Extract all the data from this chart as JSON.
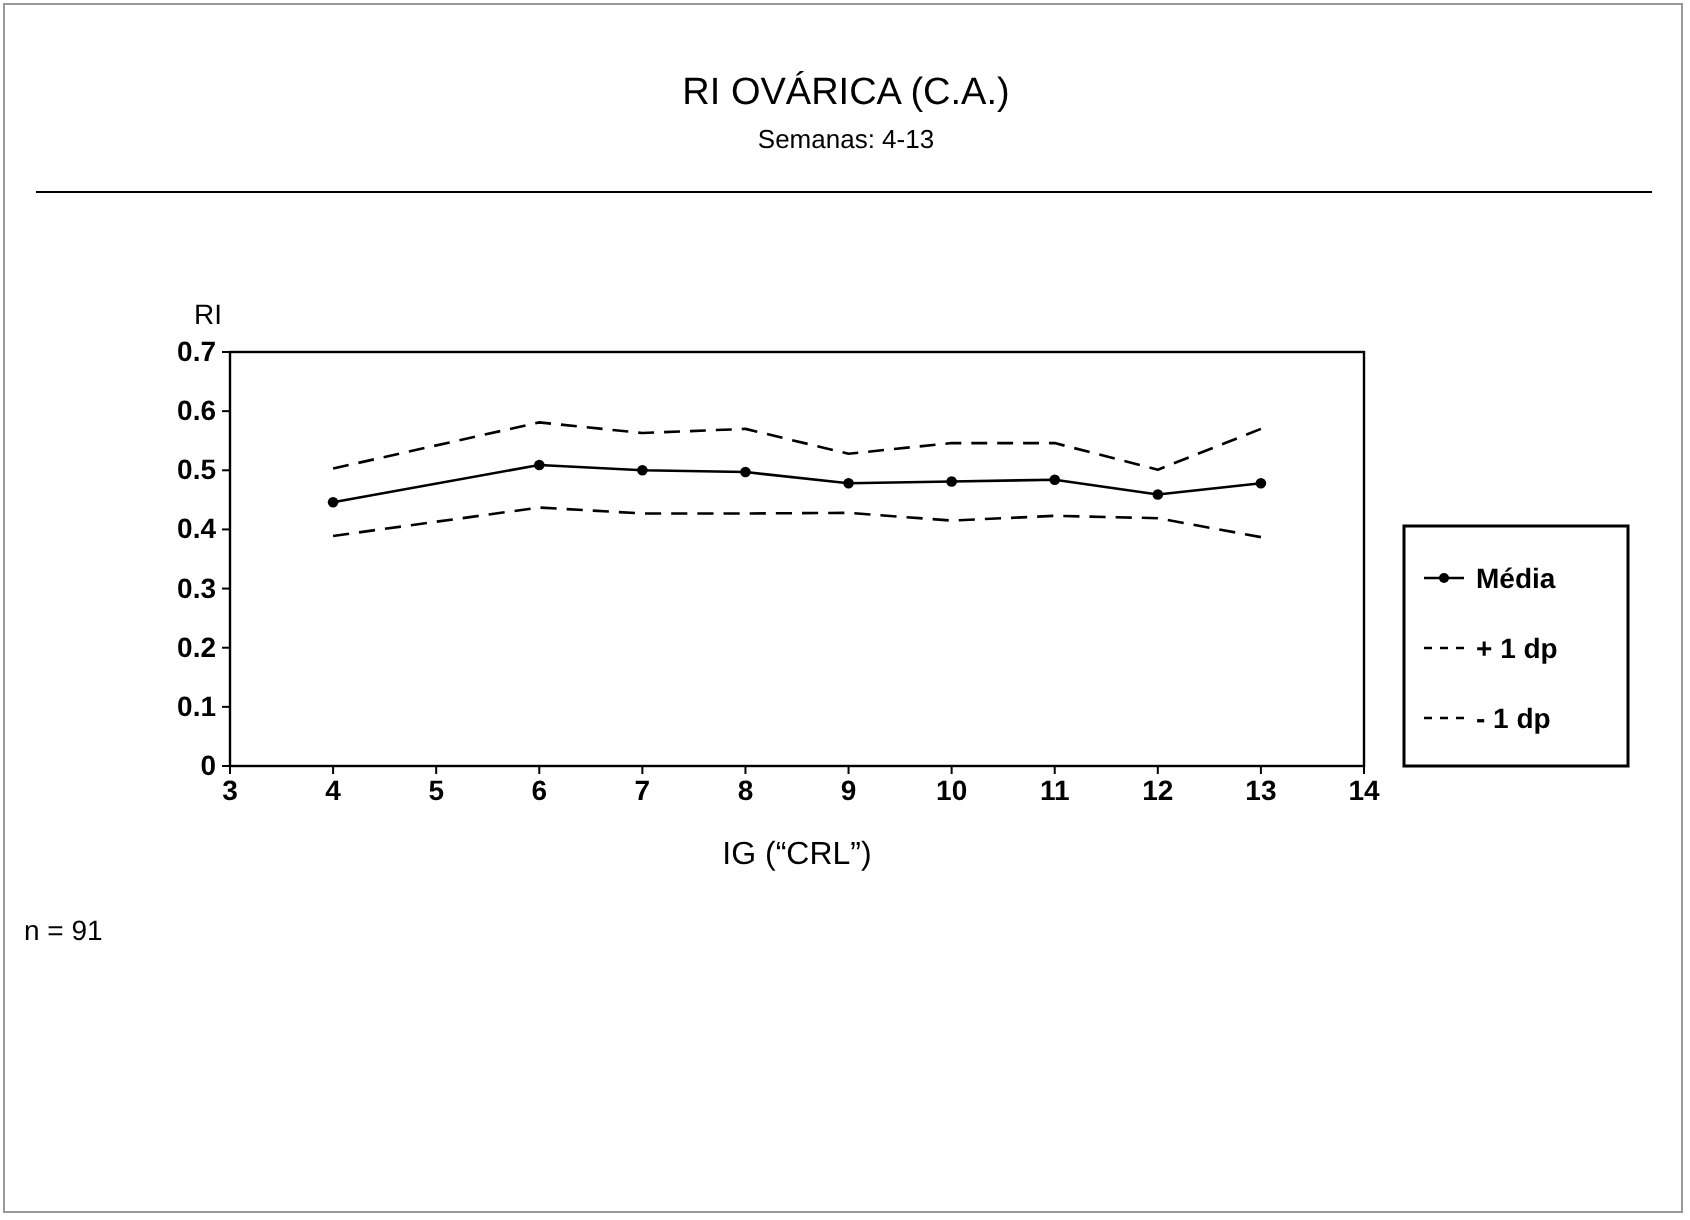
{
  "chart_data": {
    "type": "line",
    "title": "RI OVÁRICA (C.A.)",
    "subtitle": "Semanas: 4-13",
    "xlabel": "IG (“CRL”)",
    "ylabel": "RI",
    "x": [
      4,
      6,
      7,
      8,
      9,
      10,
      11,
      12,
      13
    ],
    "series": [
      {
        "name": "Média",
        "color": "#000000",
        "marker": "circle",
        "line_style": "solid",
        "values": [
          0.446,
          0.509,
          0.5,
          0.497,
          0.478,
          0.481,
          0.484,
          0.459,
          0.478
        ]
      },
      {
        "name": "+ 1 dp",
        "color": "#000000",
        "marker": "none",
        "line_style": "dashed",
        "values": [
          0.503,
          0.581,
          0.563,
          0.57,
          0.528,
          0.546,
          0.546,
          0.501,
          0.57
        ]
      },
      {
        "name": "- 1 dp",
        "color": "#000000",
        "marker": "none",
        "line_style": "dashed",
        "values": [
          0.389,
          0.437,
          0.427,
          0.427,
          0.428,
          0.415,
          0.423,
          0.419,
          0.387
        ]
      }
    ],
    "xlim": [
      3,
      14
    ],
    "xticks": [
      3,
      4,
      5,
      6,
      7,
      8,
      9,
      10,
      11,
      12,
      13,
      14
    ],
    "ylim": [
      0,
      0.7
    ],
    "yticks": [
      {
        "value": 0,
        "label": "0"
      },
      0.1,
      0.2,
      0.3,
      0.4,
      0.5,
      0.6,
      0.7
    ],
    "grid": false,
    "legend": "right",
    "annotations": [
      "n = 91"
    ]
  }
}
